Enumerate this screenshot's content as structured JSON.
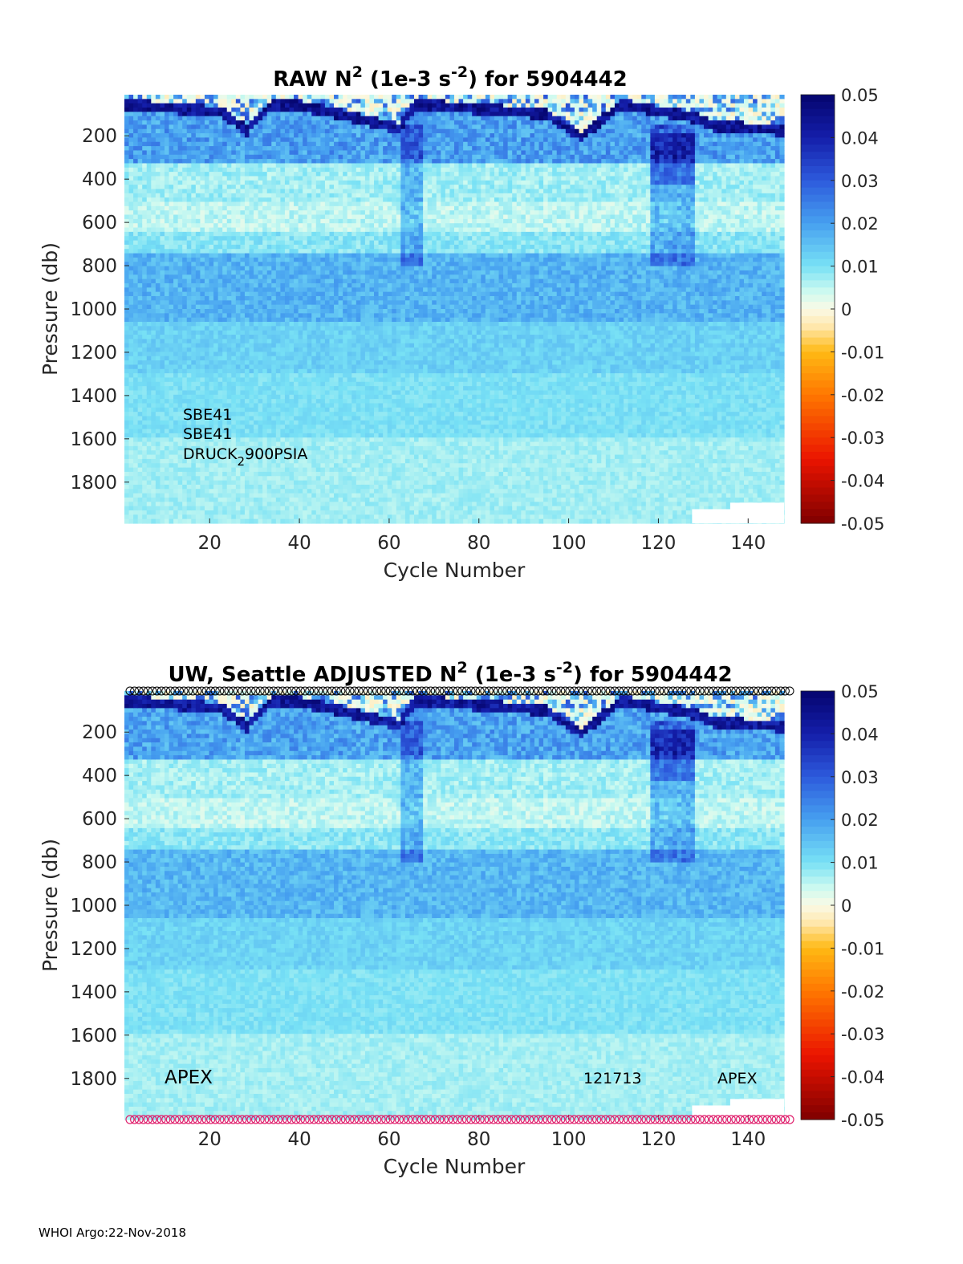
{
  "footer": "WHOI Argo:22-Nov-2018",
  "chart_data": [
    {
      "type": "heatmap",
      "title": {
        "prefix": "RAW N",
        "sup1": "2",
        "mid": " (1e-3 s",
        "sup2": "-2",
        "suffix": ") for 5904442"
      },
      "xlabel": "Cycle Number",
      "ylabel": "Pressure (db)",
      "xlim": [
        1,
        148
      ],
      "ylim": [
        1990,
        10
      ],
      "xticks": [
        20,
        40,
        60,
        80,
        100,
        120,
        140
      ],
      "yticks": [
        200,
        400,
        600,
        800,
        1000,
        1200,
        1400,
        1600,
        1800
      ],
      "colorbar": {
        "range": [
          -0.05,
          0.05
        ],
        "ticks": [
          "0.05",
          "0.04",
          "0.03",
          "0.02",
          "0.01",
          "0",
          "-0.01",
          "-0.02",
          "-0.03",
          "-0.04",
          "-0.05"
        ]
      },
      "annotations": [
        {
          "text": "SBE41"
        },
        {
          "text": "SBE41"
        },
        {
          "text": "DRUCK",
          "sub": "2",
          "after": "900PSIA"
        }
      ],
      "markers": false
    },
    {
      "type": "heatmap",
      "title": {
        "prefix": "UW, Seattle  ADJUSTED N",
        "sup1": "2",
        "mid": " (1e-3 s",
        "sup2": "-2",
        "suffix": ") for 5904442"
      },
      "xlabel": "Cycle Number",
      "ylabel": "Pressure (db)",
      "xlim": [
        1,
        148
      ],
      "ylim": [
        1990,
        10
      ],
      "xticks": [
        20,
        40,
        60,
        80,
        100,
        120,
        140
      ],
      "yticks": [
        200,
        400,
        600,
        800,
        1000,
        1200,
        1400,
        1600,
        1800
      ],
      "colorbar": {
        "range": [
          -0.05,
          0.05
        ],
        "ticks": [
          "0.05",
          "0.04",
          "0.03",
          "0.02",
          "0.01",
          "0",
          "-0.01",
          "-0.02",
          "-0.03",
          "-0.04",
          "-0.05"
        ]
      },
      "annotations": [
        {
          "text": "APEX"
        },
        {
          "text": "121713"
        },
        {
          "text": "APEX"
        }
      ],
      "markers": true,
      "marker_colors": {
        "top": "#000000",
        "bottom": "#e0226e"
      }
    }
  ]
}
